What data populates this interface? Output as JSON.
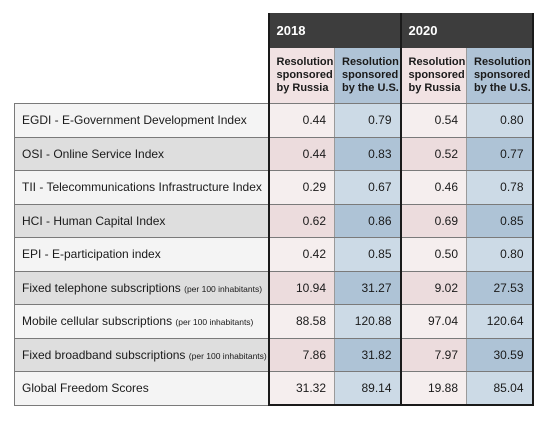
{
  "chart_data": {
    "type": "table",
    "years": [
      "2018",
      "2020"
    ],
    "column_headers": [
      "Resolution sponsored by Russia",
      "Resolution sponsored by the U.S."
    ],
    "rows": [
      {
        "label": "EGDI - E-Government Development Index",
        "note": "",
        "values": [
          "0.44",
          "0.79",
          "0.54",
          "0.80"
        ]
      },
      {
        "label": "OSI - Online Service Index",
        "note": "",
        "values": [
          "0.44",
          "0.83",
          "0.52",
          "0.77"
        ]
      },
      {
        "label": "TII - Telecommunications Infrastructure Index",
        "note": "",
        "values": [
          "0.29",
          "0.67",
          "0.46",
          "0.78"
        ]
      },
      {
        "label": "HCI - Human Capital Index",
        "note": "",
        "values": [
          "0.62",
          "0.86",
          "0.69",
          "0.85"
        ]
      },
      {
        "label": "EPI - E-participation index",
        "note": "",
        "values": [
          "0.42",
          "0.85",
          "0.50",
          "0.80"
        ]
      },
      {
        "label": "Fixed telephone subscriptions",
        "note": "(per 100 inhabitants)",
        "values": [
          "10.94",
          "31.27",
          "9.02",
          "27.53"
        ]
      },
      {
        "label": "Mobile cellular subscriptions",
        "note": "(per 100 inhabitants)",
        "values": [
          "88.58",
          "120.88",
          "97.04",
          "120.64"
        ]
      },
      {
        "label": "Fixed broadband subscriptions",
        "note": "(per 100 inhabitants)",
        "values": [
          "7.86",
          "31.82",
          "7.97",
          "30.59"
        ]
      },
      {
        "label": "Global Freedom Scores",
        "note": "",
        "values": [
          "31.32",
          "89.14",
          "19.88",
          "85.04"
        ]
      }
    ],
    "colors": {
      "year_header": "#3d3d3d",
      "russia_header": "#f1e2e3",
      "us_header": "#afc3d6",
      "russia_cell_light": "#f5eeee",
      "russia_cell_dark": "#ecdcdd",
      "us_cell_light": "#ccdae6",
      "us_cell_dark": "#aec3d6",
      "label_light": "#f4f4f4",
      "label_dark": "#dedede"
    }
  }
}
